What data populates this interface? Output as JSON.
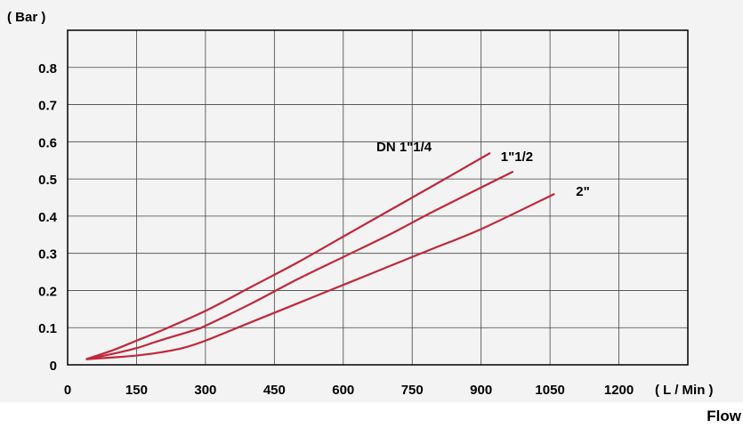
{
  "chart_data": {
    "type": "line",
    "xlabel": "( L / Min )",
    "ylabel": "( Bar )",
    "xlim": [
      0,
      1350
    ],
    "ylim": [
      0,
      0.9
    ],
    "x_ticks": [
      0,
      150,
      300,
      450,
      600,
      750,
      900,
      1050,
      1200
    ],
    "y_ticks": [
      0,
      0.1,
      0.2,
      0.3,
      0.4,
      0.5,
      0.6,
      0.7,
      0.8
    ],
    "grid": true,
    "line_color": "#c0283a",
    "series": [
      {
        "name": "DN  1\"1/4",
        "x": [
          40,
          100,
          150,
          200,
          300,
          400,
          500,
          600,
          700,
          800,
          920
        ],
        "y": [
          0.015,
          0.04,
          0.065,
          0.09,
          0.145,
          0.21,
          0.275,
          0.345,
          0.415,
          0.485,
          0.57
        ]
      },
      {
        "name": "1\"1/2",
        "x": [
          40,
          100,
          150,
          200,
          280,
          300,
          400,
          500,
          600,
          700,
          800,
          970
        ],
        "y": [
          0.015,
          0.03,
          0.045,
          0.065,
          0.095,
          0.105,
          0.165,
          0.23,
          0.29,
          0.35,
          0.415,
          0.52
        ]
      },
      {
        "name": "2\"",
        "x": [
          40,
          100,
          150,
          200,
          250,
          300,
          400,
          500,
          600,
          700,
          800,
          900,
          1060
        ],
        "y": [
          0.015,
          0.02,
          0.025,
          0.033,
          0.045,
          0.065,
          0.115,
          0.165,
          0.215,
          0.265,
          0.315,
          0.365,
          0.46
        ]
      }
    ]
  },
  "footer_label": "Flow"
}
